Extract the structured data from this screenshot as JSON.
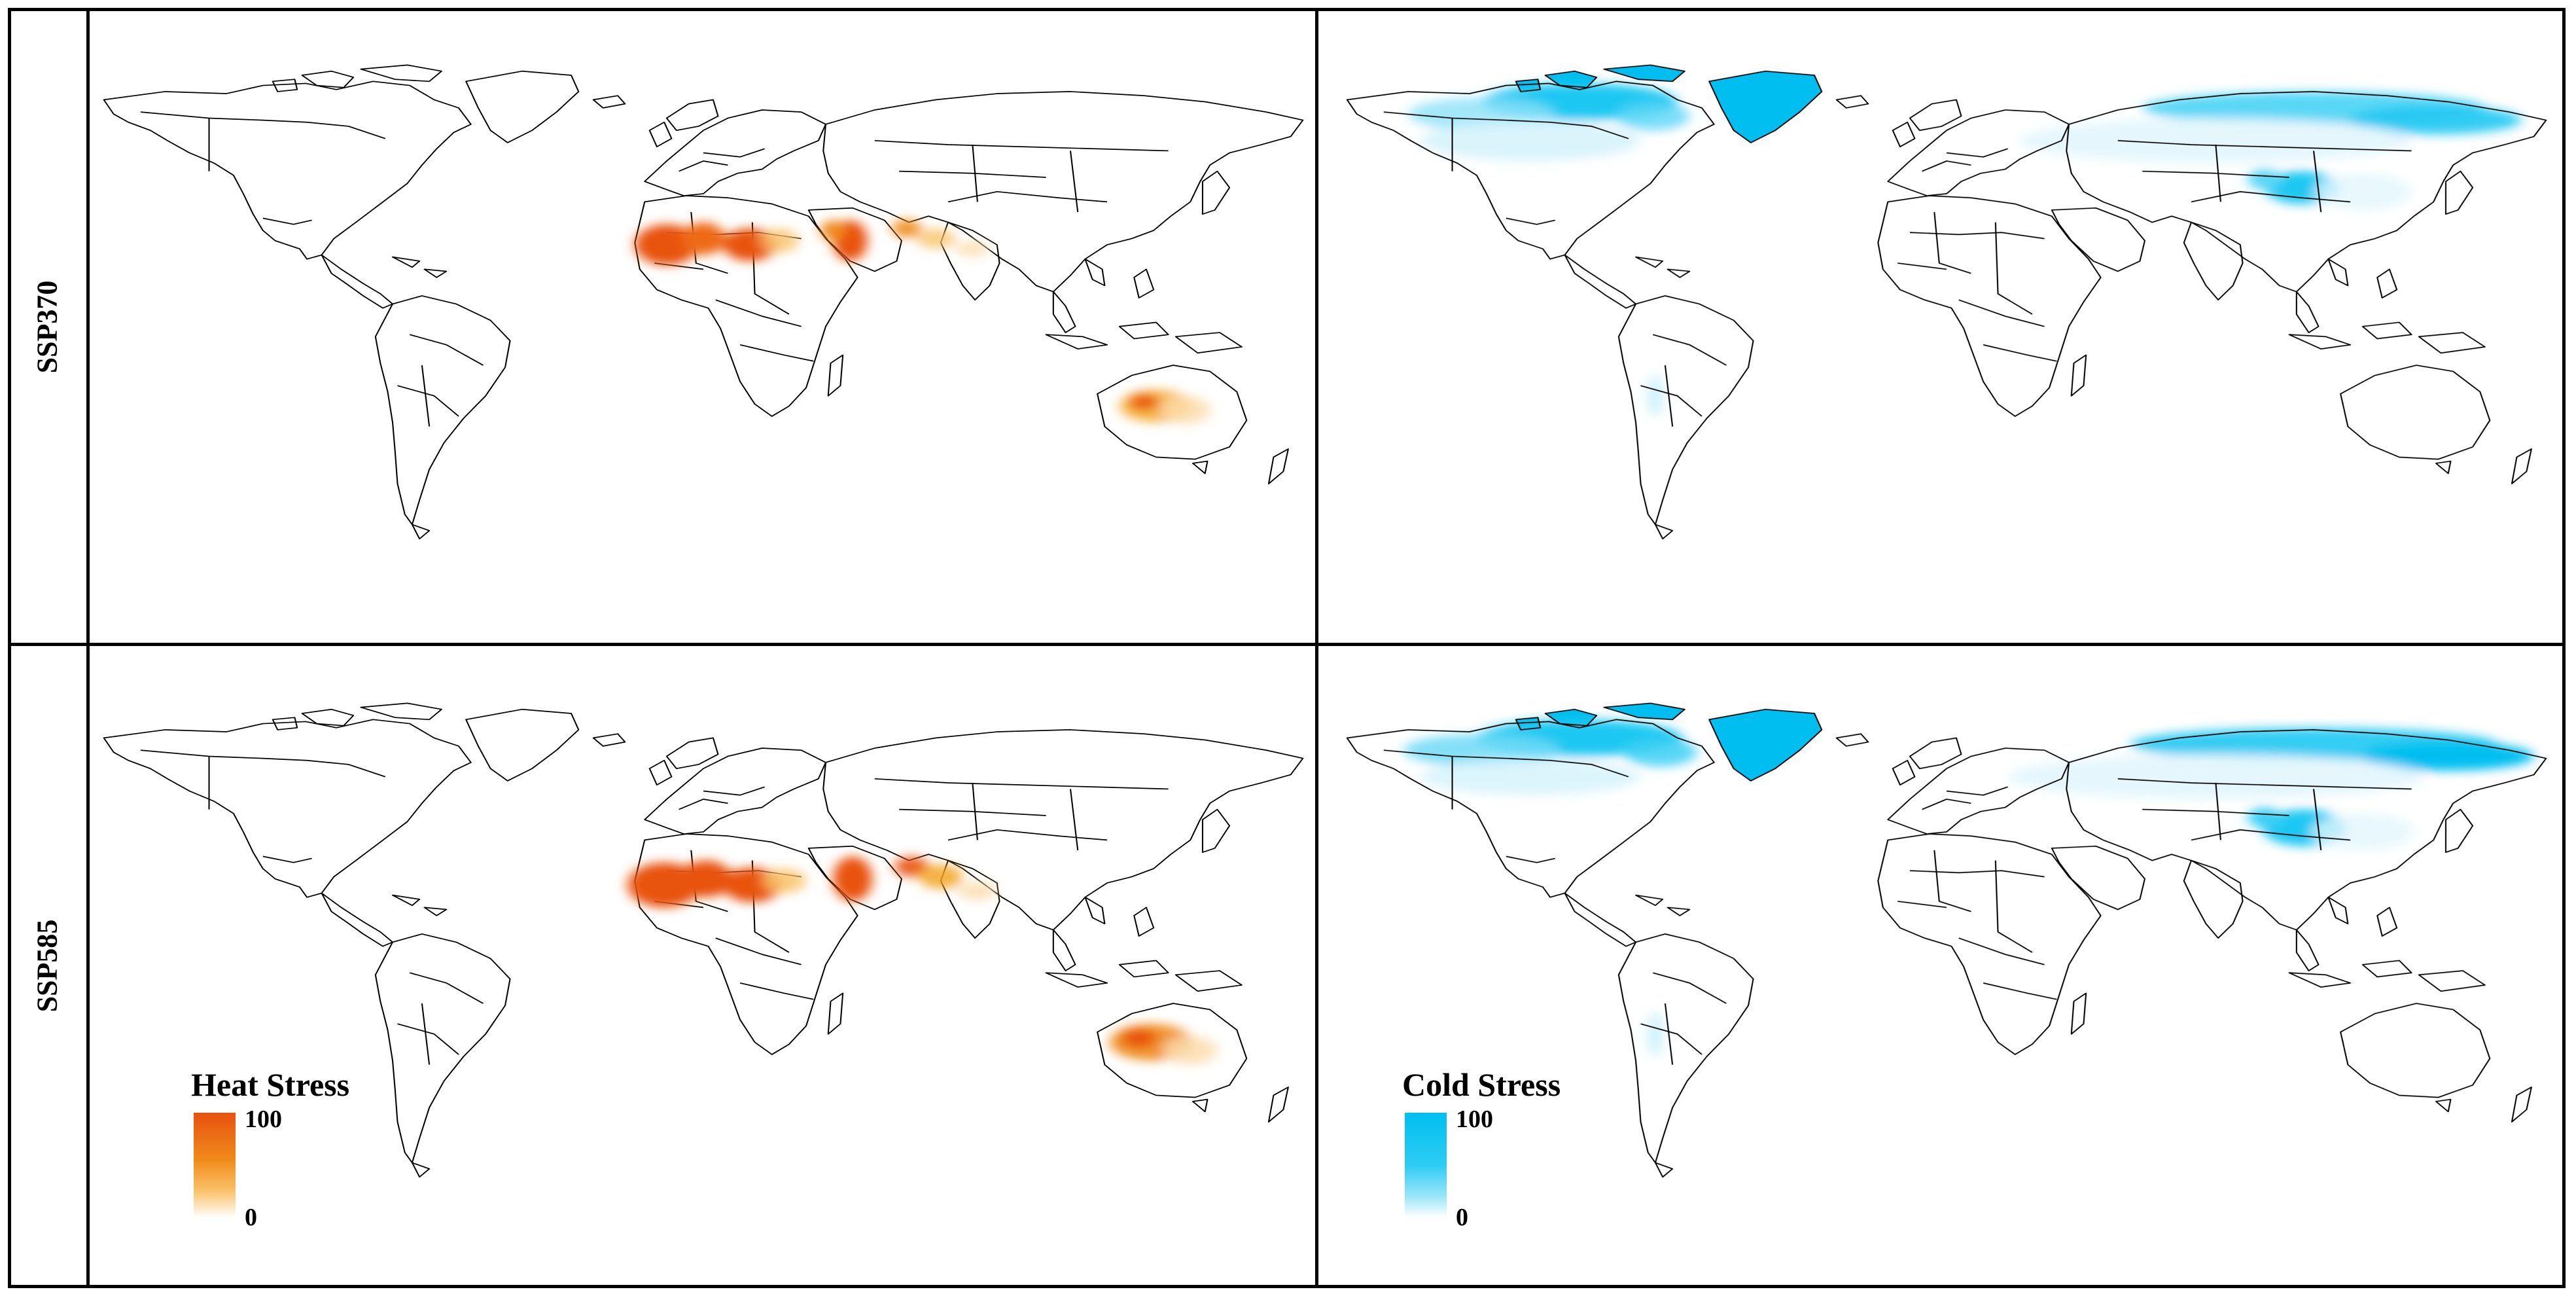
{
  "rows": [
    {
      "label": "SSP370"
    },
    {
      "label": "SSP585"
    }
  ],
  "columns": [
    {
      "variable": "heat_stress",
      "color_high": "#E8520F",
      "color_low": "#FFFFFF"
    },
    {
      "variable": "cold_stress",
      "color_high": "#00BFF0",
      "color_low": "#FFFFFF"
    }
  ],
  "legends": {
    "heat": {
      "title": "Heat Stress",
      "max": "100",
      "min": "0",
      "color_high": "#E8520F",
      "color_mid": "#F5A623",
      "color_low": "#FFFFFF"
    },
    "cold": {
      "title": "Cold Stress",
      "max": "100",
      "min": "0",
      "color_high": "#00BFF0",
      "color_low": "#FFFFFF"
    }
  },
  "map_style": {
    "land_fill": "#FFFFFF",
    "border_color": "#000000",
    "ocean_fill": "#FFFFFF"
  }
}
